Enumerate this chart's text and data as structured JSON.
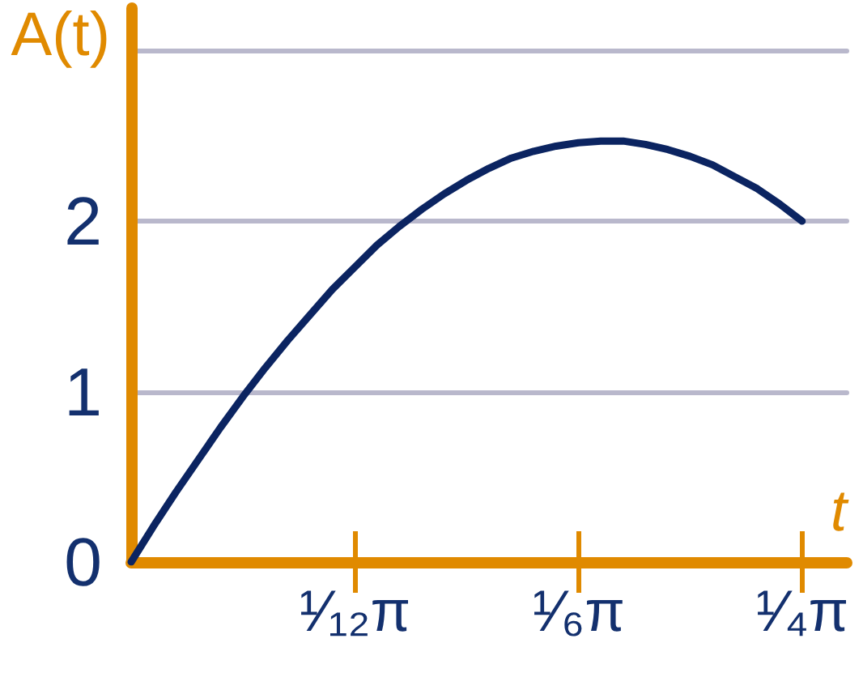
{
  "chart_data": {
    "type": "line",
    "xlabel": "t",
    "ylabel": "A(t)",
    "categories": [
      null,
      null,
      null,
      null,
      null,
      null,
      null,
      null,
      null,
      null,
      "¹⁄₁₂π",
      null,
      null,
      null,
      null,
      null,
      null,
      null,
      null,
      null,
      "¹⁄₆π",
      null,
      null,
      null,
      null,
      null,
      null,
      null,
      null,
      null,
      "¹⁄₄π",
      null,
      null
    ],
    "values": [
      0,
      0.21,
      0.41,
      0.6,
      0.79,
      0.97,
      1.14,
      1.3,
      1.45,
      1.6,
      1.73,
      1.86,
      1.97,
      2.07,
      2.16,
      2.24,
      2.31,
      2.37,
      2.41,
      2.44,
      2.46,
      2.47,
      2.47,
      2.45,
      2.42,
      2.38,
      2.33,
      2.26,
      2.19,
      2.1,
      2.0,
      null,
      null
    ],
    "color": "#0b2461",
    "ylim": [
      0,
      3.25
    ],
    "yticks": [
      0,
      1,
      2,
      {
        "value": 3,
        "label": null
      }
    ],
    "grid": "y",
    "marker": "none",
    "line_style": "solid"
  }
}
